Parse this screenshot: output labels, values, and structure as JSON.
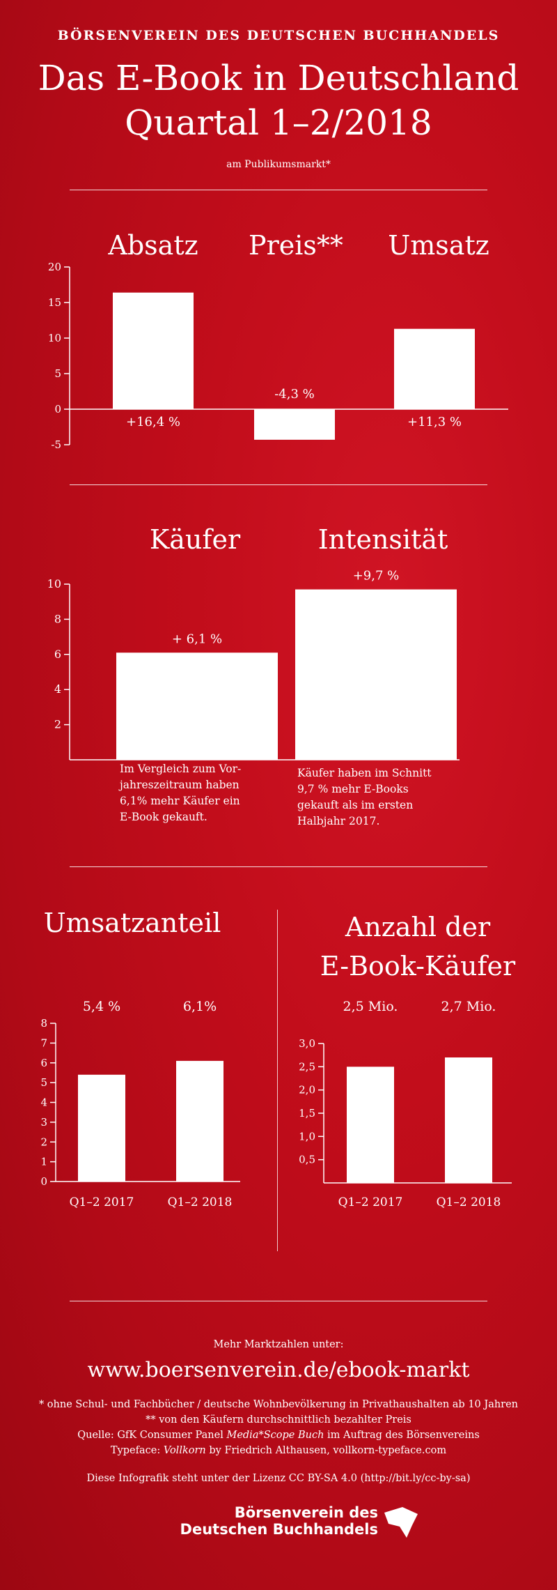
{
  "header": {
    "org": "BÖRSENVEREIN DES DEUTSCHEN BUCHHANDELS",
    "title_line1": "Das E-Book in Deutschland",
    "title_line2": "Quartal 1–2/2018",
    "subtitle": "am Publikumsmarkt*"
  },
  "section1": {
    "headings": [
      "Absatz",
      "Preis**",
      "Umsatz"
    ]
  },
  "section2": {
    "headings": [
      "Käufer",
      "Intensität"
    ],
    "note_left": [
      "Im Vergleich zum Vor-",
      "jahreszeitraum haben",
      "6,1% mehr Käufer ein",
      "E-Book gekauft."
    ],
    "note_right": [
      "Käufer haben im Schnitt",
      "9,7 % mehr E-Books",
      "gekauft als im ersten",
      "Halbjahr 2017."
    ]
  },
  "section3": {
    "heading_left": "Umsatzanteil",
    "heading_right_line1": "Anzahl der",
    "heading_right_line2": "E-Book-Käufer"
  },
  "footer": {
    "more_label": "Mehr Marktzahlen unter:",
    "url": "www.boersenverein.de/ebook-markt",
    "line1": "* ohne Schul- und Fachbücher / deutsche Wohnbevölkerung in Privathaushalten ab 10 Jahren",
    "line2": "** von den Käufern durchschnittlich bezahlter Preis",
    "line3_prefix": "Quelle: GfK Consumer Panel ",
    "line3_italic": "Media*Scope Buch",
    "line3_suffix": " im Auftrag des Börsenvereins",
    "line4_prefix": "Typeface: ",
    "line4_italic": "Vollkorn",
    "line4_suffix": " by Friedrich Althausen, vollkorn-typeface.com",
    "license": "Diese Infografik steht unter der Lizenz CC BY-SA 4.0 (http://bit.ly/cc-by-sa)",
    "logo_line1": "Börsenverein des",
    "logo_line2": "Deutschen Buchhandels"
  },
  "chart_data": [
    {
      "type": "bar",
      "categories": [
        "Absatz",
        "Preis**",
        "Umsatz"
      ],
      "values": [
        16.4,
        -4.3,
        11.3
      ],
      "labels": [
        "+16,4 %",
        "-4,3 %",
        "+11,3 %"
      ],
      "ylim": [
        -5,
        20
      ],
      "yticks": [
        20,
        15,
        10,
        5,
        0,
        -5
      ]
    },
    {
      "type": "bar",
      "categories": [
        "Käufer",
        "Intensität"
      ],
      "values": [
        6.1,
        9.7
      ],
      "labels": [
        "+ 6,1 %",
        "+9,7 %"
      ],
      "ylim": [
        0,
        10
      ],
      "yticks": [
        10,
        8,
        6,
        4,
        2
      ]
    },
    {
      "type": "bar",
      "title": "Umsatzanteil",
      "categories": [
        "Q1–2 2017",
        "Q1–2 2018"
      ],
      "values": [
        5.4,
        6.1
      ],
      "labels": [
        "5,4 %",
        "6,1%"
      ],
      "ylim": [
        0,
        8
      ],
      "yticks": [
        8,
        7,
        6,
        5,
        4,
        3,
        2,
        1,
        0
      ]
    },
    {
      "type": "bar",
      "title": "Anzahl der E-Book-Käufer",
      "categories": [
        "Q1–2 2017",
        "Q1–2 2018"
      ],
      "values": [
        2.5,
        2.7
      ],
      "labels": [
        "2,5 Mio.",
        "2,7 Mio."
      ],
      "ylim": [
        0,
        3
      ],
      "yticks": [
        "3,0",
        "2,5",
        "2,0",
        "1,5",
        "1,0",
        "0,5"
      ]
    }
  ]
}
